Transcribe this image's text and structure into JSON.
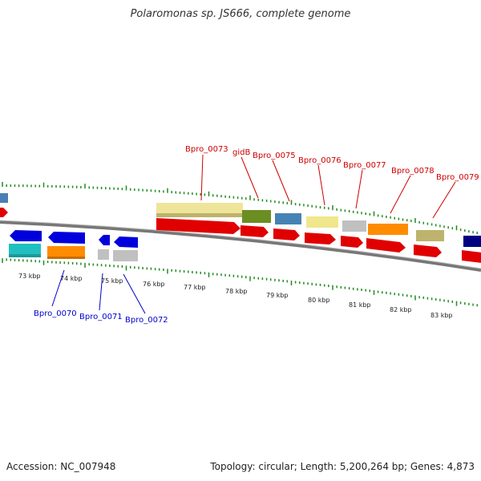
{
  "title": "Polaromonas sp. JS666, complete genome",
  "footer": {
    "accession": "Accession: NC_007948",
    "summary": "Topology: circular; Length: 5,200,264 bp; Genes: 4,873"
  },
  "colors": {
    "forward_label": "#cc0000",
    "reverse_label": "#0000cc",
    "tick": "#228b22",
    "backbone": "#777777"
  },
  "scale_labels": [
    "73 kbp",
    "74 kbp",
    "75 kbp",
    "76 kbp",
    "77 kbp",
    "78 kbp",
    "79 kbp",
    "80 kbp",
    "81 kbp",
    "82 kbp",
    "83 kbp"
  ],
  "forward_gene_labels": [
    "Bpro_0073",
    "gidB",
    "Bpro_0075",
    "Bpro_0076",
    "Bpro_0077",
    "Bpro_0078",
    "Bpro_0079"
  ],
  "reverse_gene_labels": [
    "Bpro_0070",
    "Bpro_0071",
    "Bpro_0072"
  ]
}
